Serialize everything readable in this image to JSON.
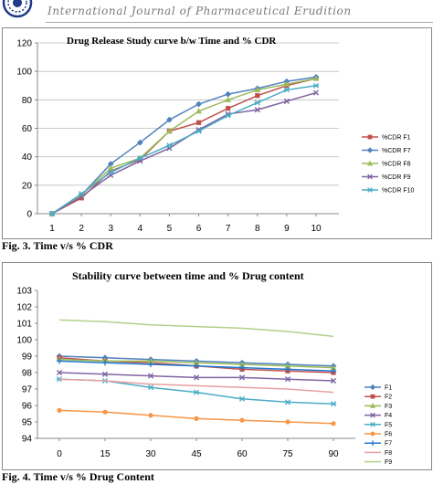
{
  "header": {
    "journal_title": "International Journal of Pharmaceutical Erudition"
  },
  "figures": [
    {
      "caption": "Fig. 3. Time v/s % CDR"
    },
    {
      "caption": "Fig. 4. Time v/s % Drug Content"
    }
  ],
  "chart_data": [
    {
      "type": "line",
      "title": "Drug Release Study curve b/w  Time       and % CDR",
      "xlabel": "",
      "ylabel": "",
      "x": [
        1,
        2,
        3,
        4,
        5,
        6,
        7,
        8,
        9,
        10
      ],
      "ylim": [
        0,
        120
      ],
      "yticks": [
        0,
        20,
        40,
        60,
        80,
        100,
        120
      ],
      "grid": "horizontal",
      "legend_position": "right",
      "series": [
        {
          "name": "%CDR F1",
          "color": "#c0504d",
          "marker": "square",
          "values": [
            0,
            11,
            30,
            38,
            58,
            64,
            74,
            83,
            90,
            95
          ]
        },
        {
          "name": "%CDR F7",
          "color": "#4f81bd",
          "marker": "diamond",
          "values": [
            0,
            13,
            35,
            50,
            66,
            77,
            84,
            88,
            93,
            96
          ]
        },
        {
          "name": "%CDR F8",
          "color": "#9bbb59",
          "marker": "triangle",
          "values": [
            0,
            13,
            32,
            39,
            58,
            72,
            80,
            87,
            91,
            95
          ]
        },
        {
          "name": "%CDR F9",
          "color": "#8064a2",
          "marker": "x",
          "values": [
            0,
            12,
            27,
            37,
            46,
            59,
            70,
            73,
            79,
            85
          ]
        },
        {
          "name": "%CDR F10",
          "color": "#4bacc6",
          "marker": "star",
          "values": [
            0,
            14,
            29,
            39,
            48,
            58,
            69,
            78,
            87,
            90
          ]
        }
      ]
    },
    {
      "type": "line",
      "title": "Stability curve between time and % Drug content",
      "xlabel": "",
      "ylabel": "",
      "x": [
        0,
        15,
        30,
        45,
        60,
        75,
        90
      ],
      "ylim": [
        94,
        103
      ],
      "yticks": [
        94,
        95,
        96,
        97,
        98,
        99,
        100,
        101,
        102,
        103
      ],
      "grid": "none",
      "legend_position": "right",
      "series": [
        {
          "name": "F1",
          "color": "#4f81bd",
          "marker": "diamond",
          "values": [
            99.0,
            98.9,
            98.8,
            98.7,
            98.6,
            98.5,
            98.4
          ]
        },
        {
          "name": "F2",
          "color": "#c0504d",
          "marker": "square",
          "values": [
            98.9,
            98.7,
            98.6,
            98.4,
            98.2,
            98.1,
            98.0
          ]
        },
        {
          "name": "F3",
          "color": "#9bbb59",
          "marker": "triangle",
          "values": [
            98.8,
            98.7,
            98.7,
            98.6,
            98.5,
            98.4,
            98.3
          ]
        },
        {
          "name": "F4",
          "color": "#8064a2",
          "marker": "x",
          "values": [
            98.0,
            97.9,
            97.8,
            97.7,
            97.7,
            97.6,
            97.5
          ]
        },
        {
          "name": "F5",
          "color": "#4bacc6",
          "marker": "star",
          "values": [
            97.6,
            97.5,
            97.1,
            96.8,
            96.4,
            96.2,
            96.1
          ]
        },
        {
          "name": "F6",
          "color": "#f79646",
          "marker": "circle",
          "values": [
            95.7,
            95.6,
            95.4,
            95.2,
            95.1,
            95.0,
            94.9
          ]
        },
        {
          "name": "F7",
          "color": "#1f77d0",
          "marker": "plus",
          "values": [
            98.7,
            98.6,
            98.5,
            98.4,
            98.3,
            98.2,
            98.1
          ]
        },
        {
          "name": "F8",
          "color": "#e8a0a0",
          "marker": "none",
          "values": [
            97.6,
            97.5,
            97.3,
            97.2,
            97.1,
            97.0,
            96.8
          ]
        },
        {
          "name": "F9",
          "color": "#b4d08a",
          "marker": "none",
          "values": [
            101.2,
            101.1,
            100.9,
            100.8,
            100.7,
            100.5,
            100.2
          ]
        }
      ]
    }
  ]
}
